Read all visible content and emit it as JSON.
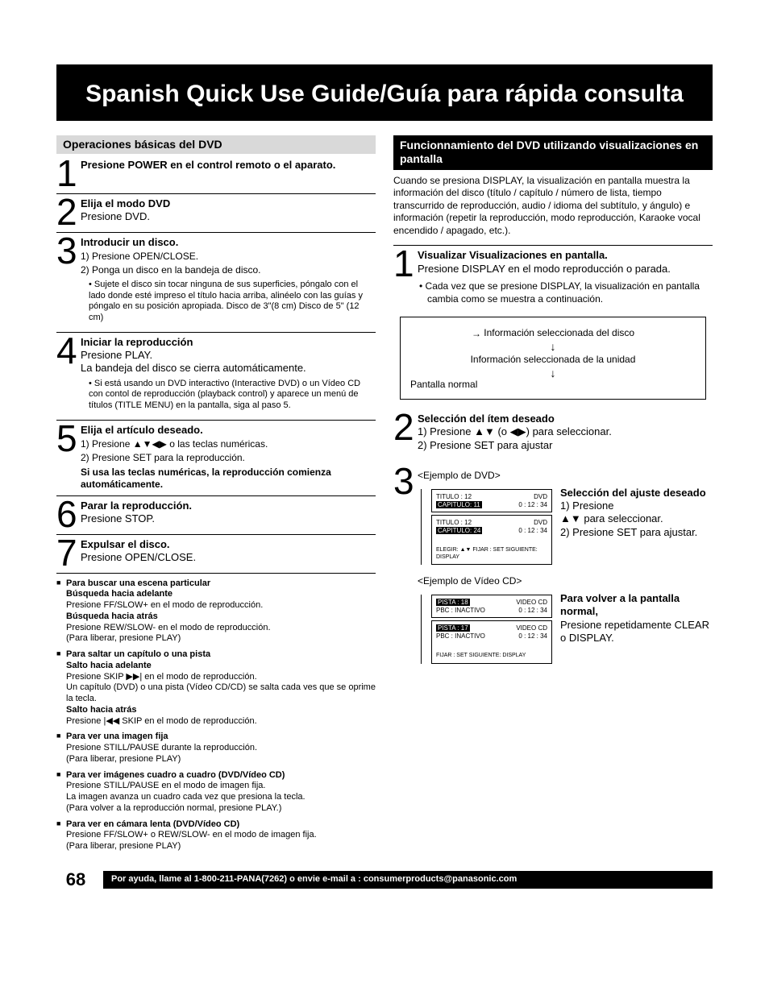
{
  "title": "Spanish Quick Use Guide/Guía para rápida consulta",
  "left": {
    "header": "Operaciones básicas del DVD",
    "steps": [
      {
        "n": "1",
        "title": "Presione POWER en el control remoto o el aparato."
      },
      {
        "n": "2",
        "title": "Elija el modo DVD",
        "text": "Presione DVD."
      },
      {
        "n": "3",
        "title": "Introducir un disco.",
        "lines": [
          "1) Presione OPEN/CLOSE.",
          "2) Ponga un disco en la bandeja de disco."
        ],
        "bullet": "Sujete el disco sin tocar ninguna de sus superficies, póngalo con el lado donde esté impreso el título hacia arriba, alinéelo con las guías y póngalo en su posición apropiada.   Disco de  3\"(8 cm)    Disco de 5\" (12 cm)"
      },
      {
        "n": "4",
        "title": "Iniciar la reproducción",
        "text": "Presione PLAY.",
        "after": "La bandeja del disco se cierra automáticamente.",
        "bullet": "Si está usando un DVD interactivo (Interactive DVD) o un Vídeo CD con contol de reproducción (playback control) y aparece un menú de títulos (TITLE MENU) en la pantalla, siga al paso 5."
      },
      {
        "n": "5",
        "title": "Elija el artículo deseado.",
        "lines": [
          "1) Presione ▲▼◀▶ o las teclas numéricas.",
          "2) Presione SET para la reproducción."
        ],
        "note": "Si usa las teclas numéricas, la reproducción comienza automáticamente."
      },
      {
        "n": "6",
        "title": "Parar la reproducción.",
        "text": "Presione STOP."
      },
      {
        "n": "7",
        "title": "Expulsar el disco.",
        "text": "Presione OPEN/CLOSE."
      }
    ],
    "tips": [
      {
        "title": "Para buscar una escena particular",
        "rows": [
          {
            "sub": "Búsqueda hacia adelante",
            "text": "Presione FF/SLOW+ en el modo de reproducción."
          },
          {
            "sub": "Búsqueda hacia atrás",
            "text": "Presione REW/SLOW- en el modo de reproducción.",
            "paren": "(Para liberar, presione PLAY)"
          }
        ]
      },
      {
        "title": "Para saltar un capítulo o una pista",
        "rows": [
          {
            "sub": "Salto hacia adelante",
            "text": "Presione SKIP ▶▶| en el modo de reproducción.",
            "extra": "Un capítulo (DVD) o una pista (Vídeo CD/CD) se salta cada ves que se oprime la tecla."
          },
          {
            "sub": "Salto hacia atrás",
            "text": "Presione |◀◀ SKIP en el modo de reproducción."
          }
        ]
      },
      {
        "title": "Para ver una imagen fija",
        "rows": [
          {
            "text": "Presione STILL/PAUSE durante la reproducción.",
            "paren": "(Para liberar, presione PLAY)"
          }
        ]
      },
      {
        "title": "Para ver imágenes cuadro a cuadro (DVD/Vídeo CD)",
        "rows": [
          {
            "text": "Presione STILL/PAUSE en el modo de imagen fija.",
            "extra": "La imagen avanza un cuadro cada vez que presiona la tecla.",
            "paren": "(Para volver a la reproducción normal, presione PLAY.)"
          }
        ]
      },
      {
        "title": "Para ver en cámara lenta (DVD/Vídeo CD)",
        "rows": [
          {
            "text": "Presione FF/SLOW+ o REW/SLOW- en el modo de imagen fija.",
            "paren": "(Para liberar, presione PLAY)"
          }
        ]
      }
    ]
  },
  "right": {
    "header": "Funcionnamiento del DVD utilizando visualizaciones en pantalla",
    "intro": "Cuando se presiona DISPLAY, la visualización en pantalla muestra la información del disco (título / capítulo / número de lista, tiempo transcurrido de reproducción, audio / idioma del subtítulo, y ángulo) e información (repetir la reproducción, modo reproducción, Karaoke vocal encendido / apagado, etc.).",
    "step1": {
      "n": "1",
      "title": "Visualizar Visualizaciones en pantalla.",
      "text": "Presione DISPLAY en el modo reproducción o parada.",
      "bullet": "Cada vez que se presione DISPLAY, la visualización en pantalla cambia como se muestra a continuación."
    },
    "flow": {
      "a": "Información seleccionada del disco",
      "b": "Información seleccionada de la unidad",
      "c": "Pantalla normal"
    },
    "step2": {
      "n": "2",
      "title": "Selección del ítem  deseado",
      "line1_pre": "1) Presione ",
      "line1_arrows": "▲▼",
      "line1_mid": " (o ",
      "line1_arrows2": "◀▶",
      "line1_post": ") para seleccionar.",
      "line2": "2) Presione SET para ajustar"
    },
    "step3": {
      "n": "3",
      "ex_dvd_label": "<Ejemplo de DVD>",
      "title": "Selección del ajuste deseado",
      "line1_pre": "1) Presione",
      "line1_arrows": "▲▼",
      "line1_post": " para seleccionar.",
      "line2": "2) Presione SET para ajustar.",
      "ex_vcd_label": "<Ejemplo de Vídeo CD>",
      "return_title": "Para volver a la pantalla normal,",
      "return_text": "Presione repetidamente CLEAR o DISPLAY."
    },
    "osd_dvd1": {
      "l1a": "TITULO  :  12",
      "l1b": "DVD",
      "l2a": "CAPITULO:  11",
      "l2b": "0 : 12 : 34"
    },
    "osd_dvd2": {
      "l1a": "TITULO  :  12",
      "l1b": "DVD",
      "l2a": "CAPITULO:  24",
      "l2b": "0 : 12 : 34",
      "foot": "ELEGIR: ▲▼\nFIJAR  : SET  SIGUIENTE: DISPLAY"
    },
    "osd_vcd1": {
      "l1a": "PISTA  :  18",
      "l1b": "VIDEO CD",
      "l2a": "PBC       : INACTIVO",
      "l2b": "0 : 12 : 34"
    },
    "osd_vcd2": {
      "l1a": "PISTA  :  17",
      "l1b": "VIDEO CD",
      "l2a": "PBC       : INACTIVO",
      "l2b": "0 : 12 : 34",
      "foot": "FIJAR  : SET  SIGUIENTE: DISPLAY"
    }
  },
  "footer": {
    "page": "68",
    "text": "Por ayuda, llame al 1-800-211-PANA(7262) o envie e-mail a : consumerproducts@panasonic.com"
  }
}
